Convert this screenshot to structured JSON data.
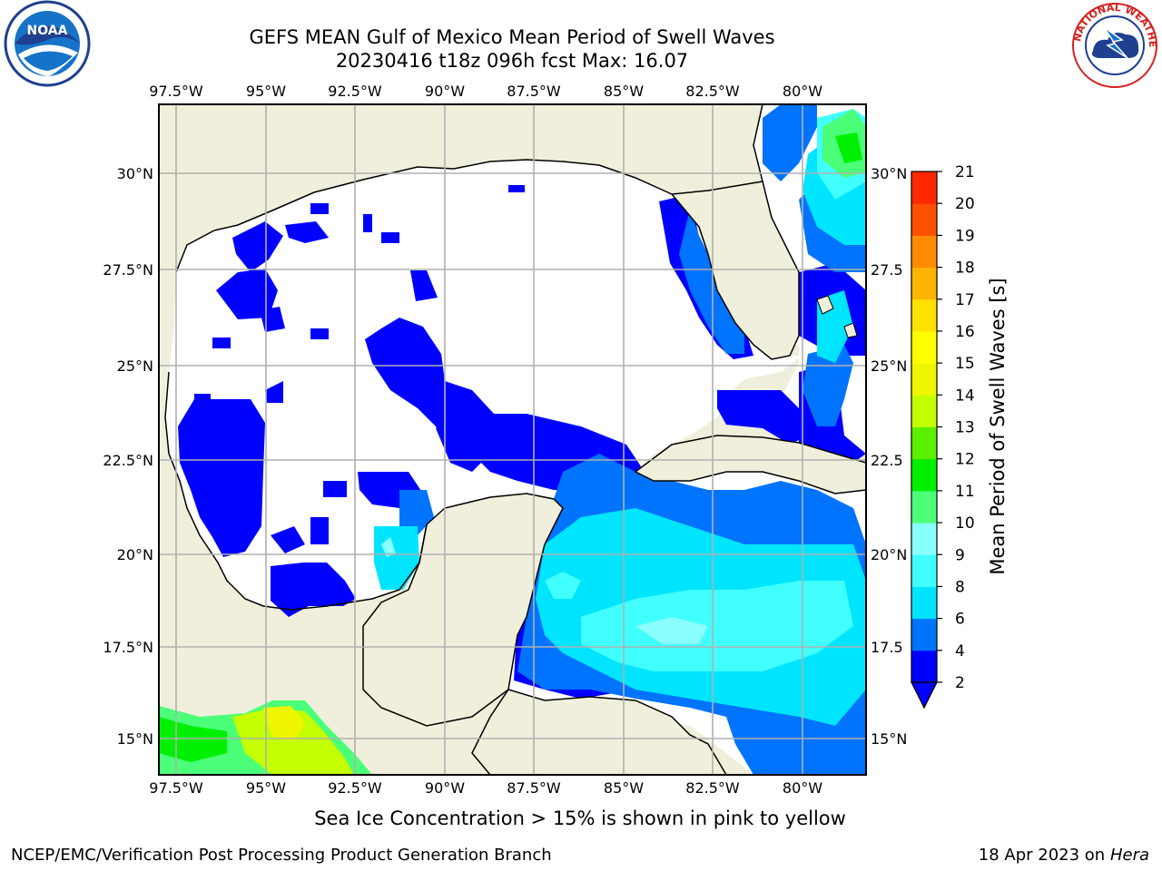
{
  "header": {
    "title_line1": "GEFS MEAN Gulf of Mexico Mean Period of Swell Waves",
    "title_line2": "20230416 t18z 096h fcst   Max: 16.07"
  },
  "logos": {
    "left": "noaa-logo",
    "right": "national-weather-service-logo"
  },
  "map": {
    "region": "Gulf of Mexico",
    "lon_labels": [
      "97.5°W",
      "95°W",
      "92.5°W",
      "90°W",
      "87.5°W",
      "85°W",
      "82.5°W",
      "80°W"
    ],
    "lat_labels_left": [
      "30°N",
      "27.5°N",
      "25°N",
      "22.5°N",
      "20°N",
      "17.5°N",
      "15°N"
    ],
    "lat_labels_right": [
      "30°N",
      "27.5",
      "25°N",
      "22.5",
      "20°N",
      "17.5",
      "15°N"
    ],
    "colors": {
      "land": "#efefdc",
      "ocean_none": "#ffffff",
      "grid": "#b0b0b0"
    }
  },
  "colorbar": {
    "label": "Mean Period of Swell Waves [s]",
    "ticks": [
      "2",
      "4",
      "6",
      "8",
      "9",
      "10",
      "11",
      "12",
      "13",
      "14",
      "15",
      "16",
      "17",
      "18",
      "19",
      "20",
      "21"
    ],
    "colors": [
      "#0000ff",
      "#0073ff",
      "#00e5ff",
      "#41ffff",
      "#8affff",
      "#4cff78",
      "#00f000",
      "#5af000",
      "#c3ff00",
      "#f0f500",
      "#ffff00",
      "#ffe100",
      "#ffb400",
      "#ff8c00",
      "#ff5000",
      "#ff2800",
      "#ff0000"
    ],
    "under_color": "#0000ff"
  },
  "footer": {
    "note": "Sea Ice Concentration > 15% is shown in pink to yellow",
    "left": "NCEP/EMC/Verification Post Processing Product Generation Branch",
    "right_date": "18 Apr 2023 on",
    "right_host": "Hera"
  }
}
